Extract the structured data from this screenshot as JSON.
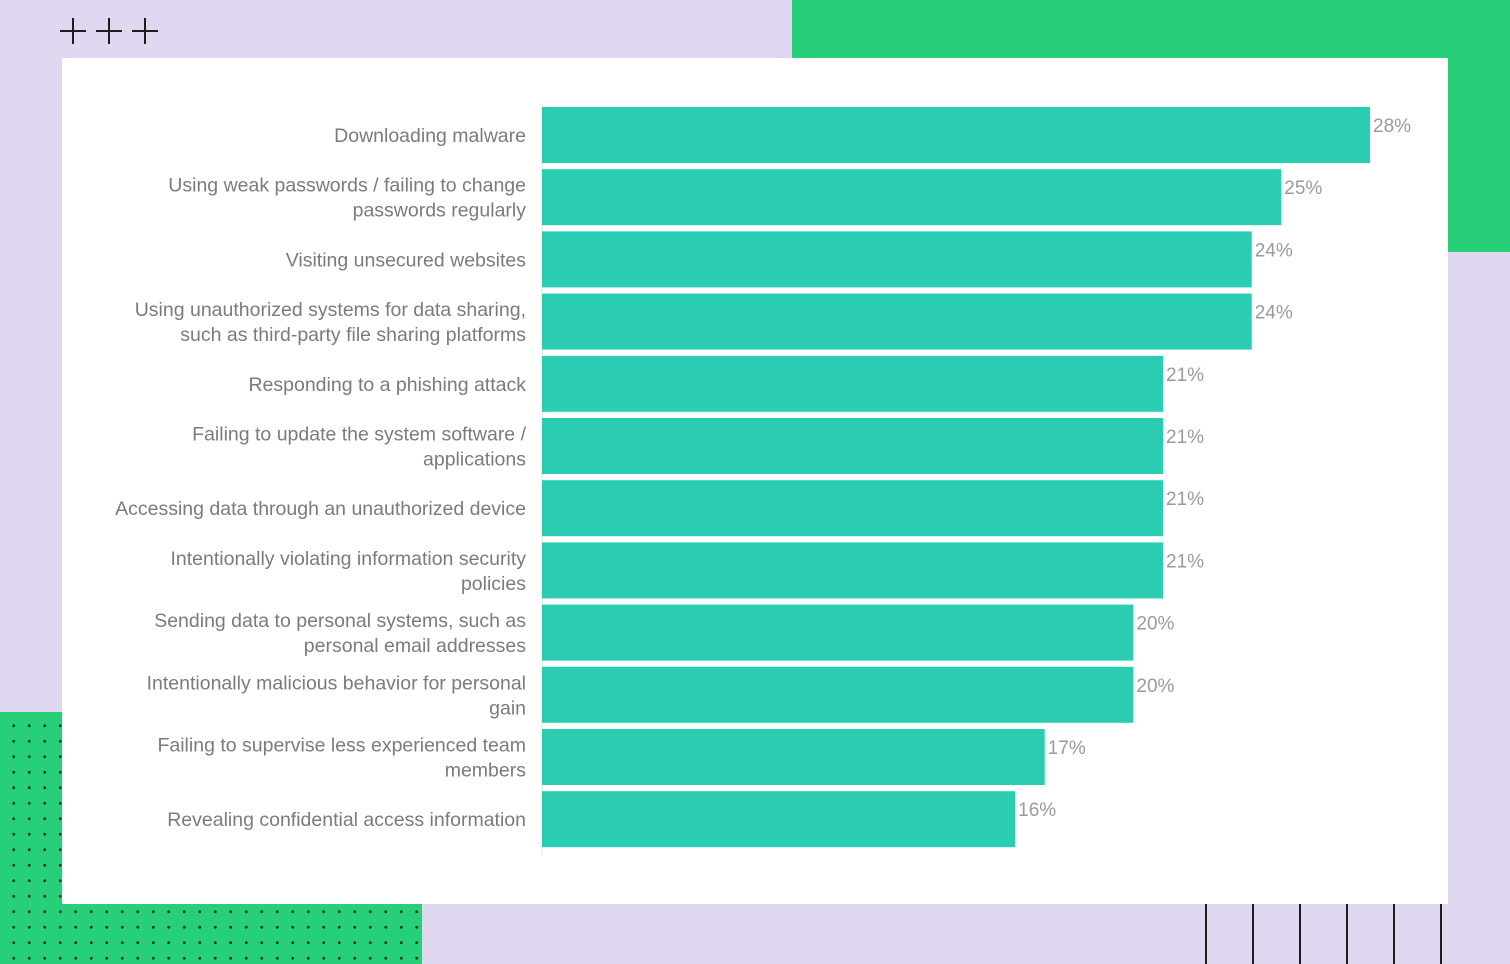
{
  "chart_data": {
    "type": "bar",
    "orientation": "horizontal",
    "categories": [
      [
        "Downloading malware"
      ],
      [
        "Using weak passwords / failing to change",
        "passwords regularly"
      ],
      [
        "Visiting unsecured websites"
      ],
      [
        "Using unauthorized systems for data sharing,",
        "such as third-party file sharing platforms"
      ],
      [
        "Responding to a phishing attack"
      ],
      [
        "Failing to update the system software /",
        "applications"
      ],
      [
        "Accessing data through an unauthorized device"
      ],
      [
        "Intentionally violating information security",
        "policies"
      ],
      [
        "Sending data to personal systems, such as",
        "personal email addresses"
      ],
      [
        "Intentionally malicious behavior for personal",
        "gain"
      ],
      [
        "Failing to supervise less experienced team",
        "members"
      ],
      [
        "Revealing confidential access information"
      ]
    ],
    "values": [
      28,
      25,
      24,
      24,
      21,
      21,
      21,
      21,
      20,
      20,
      17,
      16
    ],
    "value_labels": [
      "28%",
      "25%",
      "24%",
      "24%",
      "21%",
      "21%",
      "21%",
      "21%",
      "20%",
      "20%",
      "17%",
      "16%"
    ],
    "xlim": [
      0,
      28
    ],
    "bar_color": "#2acdb1",
    "title": "",
    "xlabel": "",
    "ylabel": ""
  },
  "colors": {
    "background": "#e0d8f0",
    "accent_green": "#27cf78",
    "card": "#ffffff",
    "label_text": "#7b7b7b",
    "value_text": "#9a9a9a"
  }
}
